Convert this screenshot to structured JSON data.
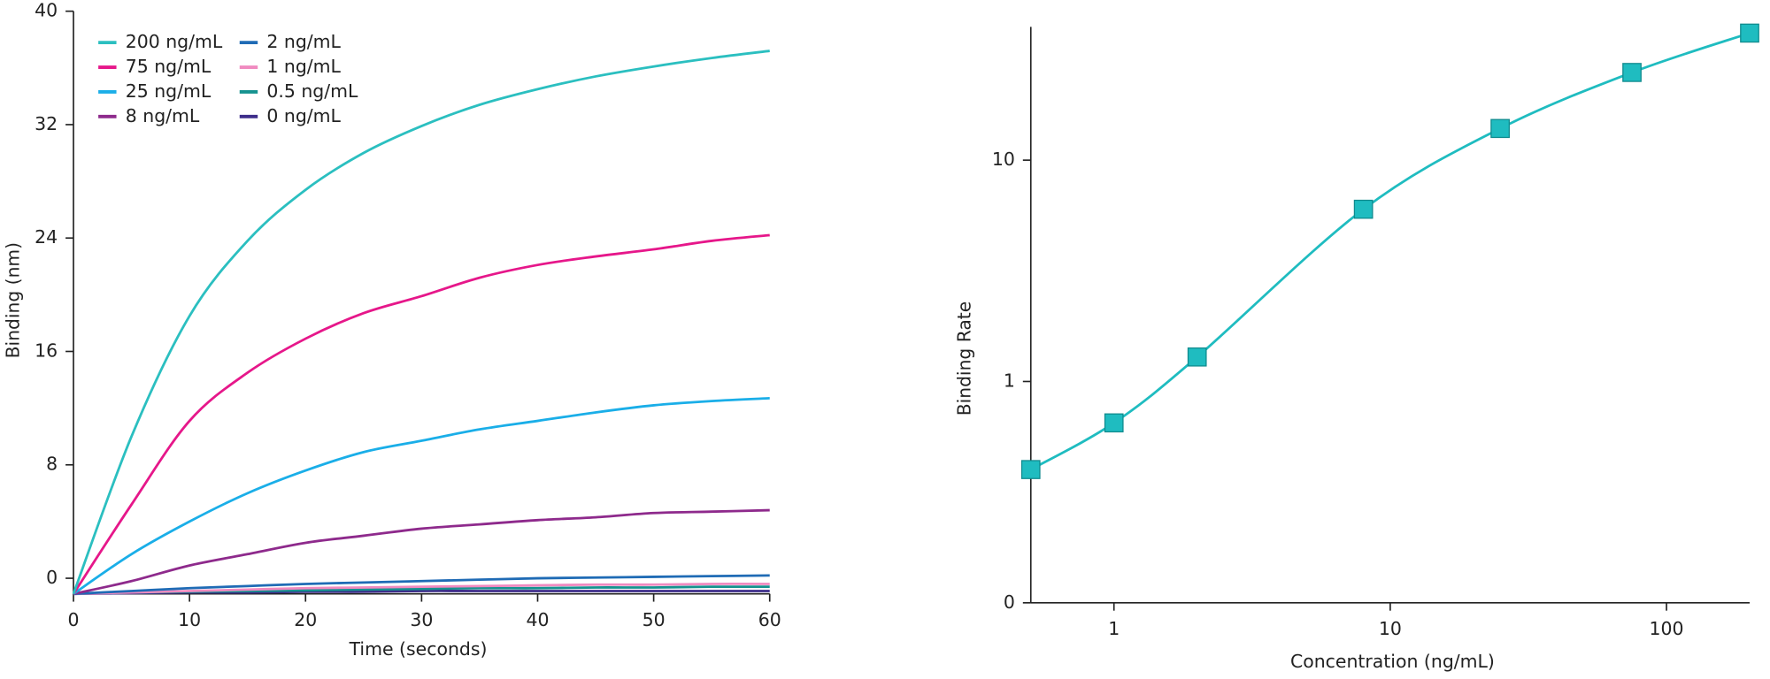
{
  "chart_data": [
    {
      "type": "line",
      "x_label": "Time (seconds)",
      "y_label": "Binding (nm)",
      "x": [
        0,
        5,
        10,
        15,
        20,
        25,
        30,
        35,
        40,
        45,
        50,
        55,
        60
      ],
      "xlim": [
        0,
        60
      ],
      "xticks": [
        0,
        10,
        20,
        30,
        40,
        50,
        60
      ],
      "ylim": [
        -1.1,
        40
      ],
      "yticks": [
        0,
        8,
        16,
        24,
        32,
        40
      ],
      "legend": "top-left",
      "series": [
        {
          "name": "200 ng/mL",
          "color": "#2bbfc0",
          "values": [
            -1.1,
            10.0,
            18.5,
            23.8,
            27.4,
            30.0,
            31.9,
            33.4,
            34.5,
            35.4,
            36.1,
            36.7,
            37.2
          ]
        },
        {
          "name": "75 ng/mL",
          "color": "#e6178a",
          "values": [
            -1.1,
            5.2,
            11.1,
            14.5,
            16.9,
            18.7,
            19.9,
            21.2,
            22.1,
            22.7,
            23.2,
            23.8,
            24.2
          ]
        },
        {
          "name": "25 ng/mL",
          "color": "#1aaee8",
          "values": [
            -1.1,
            1.7,
            4.0,
            6.0,
            7.6,
            8.9,
            9.7,
            10.5,
            11.1,
            11.7,
            12.2,
            12.5,
            12.7
          ]
        },
        {
          "name": "8 ng/mL",
          "color": "#8e2a8c",
          "values": [
            -1.1,
            -0.2,
            0.9,
            1.7,
            2.5,
            3.0,
            3.5,
            3.8,
            4.1,
            4.3,
            4.6,
            4.7,
            4.8
          ]
        },
        {
          "name": "2 ng/mL",
          "color": "#1f6bb5",
          "values": [
            -1.1,
            -0.9,
            -0.7,
            -0.55,
            -0.4,
            -0.3,
            -0.2,
            -0.1,
            0.0,
            0.05,
            0.1,
            0.15,
            0.2
          ]
        },
        {
          "name": "1 ng/mL",
          "color": "#f08ac0",
          "values": [
            -1.1,
            -1.0,
            -0.9,
            -0.8,
            -0.7,
            -0.65,
            -0.6,
            -0.55,
            -0.5,
            -0.45,
            -0.45,
            -0.4,
            -0.4
          ]
        },
        {
          "name": "0.5 ng/mL",
          "color": "#15928f",
          "values": [
            -1.1,
            -1.0,
            -0.95,
            -0.9,
            -0.85,
            -0.8,
            -0.75,
            -0.7,
            -0.7,
            -0.65,
            -0.65,
            -0.6,
            -0.6
          ]
        },
        {
          "name": "0 ng/mL",
          "color": "#3d2d8a",
          "values": [
            -1.1,
            -1.05,
            -1.0,
            -1.0,
            -0.95,
            -0.95,
            -0.9,
            -0.9,
            -0.9,
            -0.9,
            -0.9,
            -0.9,
            -0.9
          ]
        }
      ]
    },
    {
      "type": "line",
      "x_label": "Concentration (ng/mL)",
      "y_label": "Binding Rate",
      "log_x": true,
      "log_y": true,
      "markers": true,
      "color": "#1fbcc0",
      "x": [
        0.5,
        1,
        2,
        8,
        25,
        75,
        200
      ],
      "values": [
        0.4,
        0.65,
        1.29,
        6.0,
        13.9,
        24.9,
        37.5
      ],
      "xlim": [
        0.5,
        200
      ],
      "xticks": [
        1,
        10,
        100
      ],
      "ylim": [
        0.1,
        40
      ],
      "yticks": [
        {
          "value": 0.1,
          "label": "0"
        },
        1,
        10
      ]
    }
  ]
}
